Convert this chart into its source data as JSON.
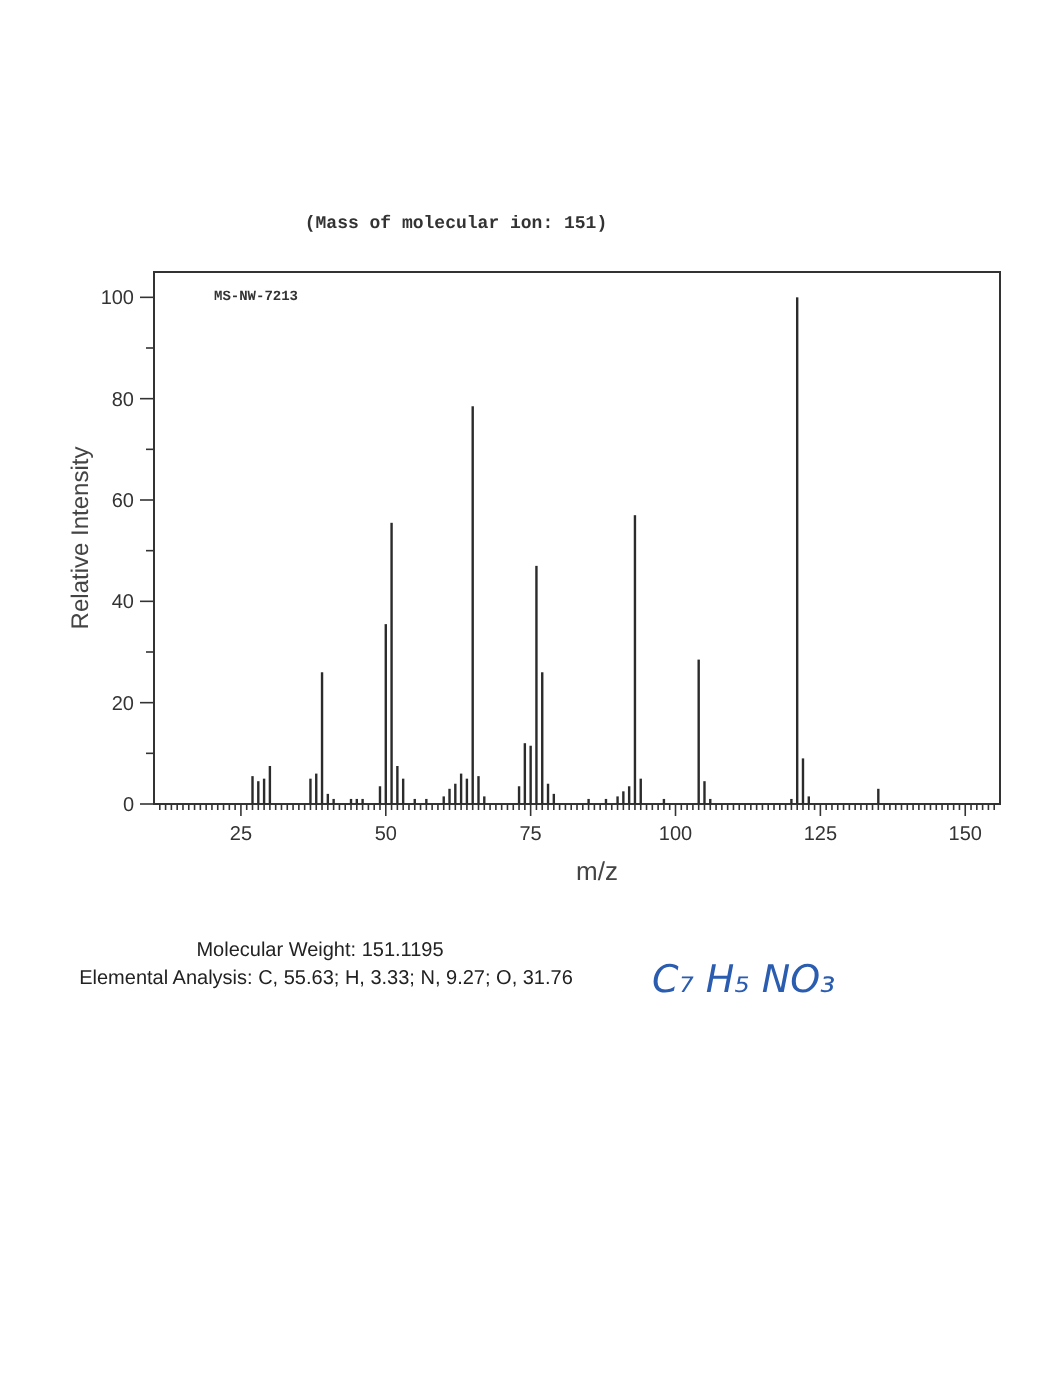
{
  "chart_data": {
    "type": "bar",
    "title": "(Mass of molecular ion: 151)",
    "xlabel": "m/z",
    "ylabel": "Relative Intensity",
    "annotations": [
      "MS-NW-7213",
      "Molecular Weight: 151.1195",
      "Elemental Analysis: C, 55.63; H, 3.33; N, 9.27; O, 31.76",
      "C₇ H₅ NO₃"
    ],
    "x": [
      27,
      28,
      29,
      30,
      37,
      38,
      39,
      40,
      41,
      44,
      45,
      46,
      49,
      50,
      51,
      52,
      53,
      55,
      57,
      60,
      61,
      62,
      63,
      64,
      65,
      66,
      67,
      73,
      74,
      75,
      76,
      77,
      78,
      79,
      85,
      88,
      90,
      91,
      92,
      93,
      94,
      98,
      104,
      105,
      106,
      120,
      121,
      122,
      123,
      135
    ],
    "values": [
      5.5,
      4.5,
      5,
      7.5,
      5,
      6,
      26,
      2,
      1,
      1,
      1,
      1,
      3.5,
      35.5,
      55.5,
      7.5,
      5,
      1,
      1,
      1.5,
      3,
      4,
      6,
      5,
      78.5,
      5.5,
      1.5,
      3.5,
      12,
      11.5,
      47,
      26,
      4,
      2,
      1,
      1,
      1.5,
      2.5,
      3.5,
      57,
      5,
      1,
      28.5,
      4.5,
      1,
      1,
      100,
      9,
      1.5,
      3
    ],
    "color": "#2b2b2b",
    "xlim": [
      10,
      156
    ],
    "ylim": [
      0,
      105
    ],
    "xticks": [
      {
        "value": 11,
        "label": null
      },
      {
        "value": 12,
        "label": null
      },
      {
        "value": 13,
        "label": null
      },
      {
        "value": 14,
        "label": null
      },
      {
        "value": 15,
        "label": null
      },
      {
        "value": 16,
        "label": null
      },
      {
        "value": 17,
        "label": null
      },
      {
        "value": 18,
        "label": null
      },
      {
        "value": 19,
        "label": null
      },
      {
        "value": 20,
        "label": null
      },
      {
        "value": 21,
        "label": null
      },
      {
        "value": 22,
        "label": null
      },
      {
        "value": 23,
        "label": null
      },
      {
        "value": 24,
        "label": null
      },
      25,
      {
        "value": 26,
        "label": null
      },
      {
        "value": 27,
        "label": null
      },
      {
        "value": 28,
        "label": null
      },
      {
        "value": 29,
        "label": null
      },
      {
        "value": 30,
        "label": null
      },
      {
        "value": 31,
        "label": null
      },
      {
        "value": 32,
        "label": null
      },
      {
        "value": 33,
        "label": null
      },
      {
        "value": 34,
        "label": null
      },
      {
        "value": 35,
        "label": null
      },
      {
        "value": 36,
        "label": null
      },
      {
        "value": 37,
        "label": null
      },
      {
        "value": 38,
        "label": null
      },
      {
        "value": 39,
        "label": null
      },
      {
        "value": 40,
        "label": null
      },
      {
        "value": 41,
        "label": null
      },
      {
        "value": 42,
        "label": null
      },
      {
        "value": 43,
        "label": null
      },
      {
        "value": 44,
        "label": null
      },
      {
        "value": 45,
        "label": null
      },
      {
        "value": 46,
        "label": null
      },
      {
        "value": 47,
        "label": null
      },
      {
        "value": 48,
        "label": null
      },
      {
        "value": 49,
        "label": null
      },
      50,
      {
        "value": 51,
        "label": null
      },
      {
        "value": 52,
        "label": null
      },
      {
        "value": 53,
        "label": null
      },
      {
        "value": 54,
        "label": null
      },
      {
        "value": 55,
        "label": null
      },
      {
        "value": 56,
        "label": null
      },
      {
        "value": 57,
        "label": null
      },
      {
        "value": 58,
        "label": null
      },
      {
        "value": 59,
        "label": null
      },
      {
        "value": 60,
        "label": null
      },
      {
        "value": 61,
        "label": null
      },
      {
        "value": 62,
        "label": null
      },
      {
        "value": 63,
        "label": null
      },
      {
        "value": 64,
        "label": null
      },
      {
        "value": 65,
        "label": null
      },
      {
        "value": 66,
        "label": null
      },
      {
        "value": 67,
        "label": null
      },
      {
        "value": 68,
        "label": null
      },
      {
        "value": 69,
        "label": null
      },
      {
        "value": 70,
        "label": null
      },
      {
        "value": 71,
        "label": null
      },
      {
        "value": 72,
        "label": null
      },
      {
        "value": 73,
        "label": null
      },
      {
        "value": 74,
        "label": null
      },
      75,
      {
        "value": 76,
        "label": null
      },
      {
        "value": 77,
        "label": null
      },
      {
        "value": 78,
        "label": null
      },
      {
        "value": 79,
        "label": null
      },
      {
        "value": 80,
        "label": null
      },
      {
        "value": 81,
        "label": null
      },
      {
        "value": 82,
        "label": null
      },
      {
        "value": 83,
        "label": null
      },
      {
        "value": 84,
        "label": null
      },
      {
        "value": 85,
        "label": null
      },
      {
        "value": 86,
        "label": null
      },
      {
        "value": 87,
        "label": null
      },
      {
        "value": 88,
        "label": null
      },
      {
        "value": 89,
        "label": null
      },
      {
        "value": 90,
        "label": null
      },
      {
        "value": 91,
        "label": null
      },
      {
        "value": 92,
        "label": null
      },
      {
        "value": 93,
        "label": null
      },
      {
        "value": 94,
        "label": null
      },
      {
        "value": 95,
        "label": null
      },
      {
        "value": 96,
        "label": null
      },
      {
        "value": 97,
        "label": null
      },
      {
        "value": 98,
        "label": null
      },
      {
        "value": 99,
        "label": null
      },
      100,
      {
        "value": 101,
        "label": null
      },
      {
        "value": 102,
        "label": null
      },
      {
        "value": 103,
        "label": null
      },
      {
        "value": 104,
        "label": null
      },
      {
        "value": 105,
        "label": null
      },
      {
        "value": 106,
        "label": null
      },
      {
        "value": 107,
        "label": null
      },
      {
        "value": 108,
        "label": null
      },
      {
        "value": 109,
        "label": null
      },
      {
        "value": 110,
        "label": null
      },
      {
        "value": 111,
        "label": null
      },
      {
        "value": 112,
        "label": null
      },
      {
        "value": 113,
        "label": null
      },
      {
        "value": 114,
        "label": null
      },
      {
        "value": 115,
        "label": null
      },
      {
        "value": 116,
        "label": null
      },
      {
        "value": 117,
        "label": null
      },
      {
        "value": 118,
        "label": null
      },
      {
        "value": 119,
        "label": null
      },
      {
        "value": 120,
        "label": null
      },
      {
        "value": 121,
        "label": null
      },
      {
        "value": 122,
        "label": null
      },
      {
        "value": 123,
        "label": null
      },
      {
        "value": 124,
        "label": null
      },
      125,
      {
        "value": 126,
        "label": null
      },
      {
        "value": 127,
        "label": null
      },
      {
        "value": 128,
        "label": null
      },
      {
        "value": 129,
        "label": null
      },
      {
        "value": 130,
        "label": null
      },
      {
        "value": 131,
        "label": null
      },
      {
        "value": 132,
        "label": null
      },
      {
        "value": 133,
        "label": null
      },
      {
        "value": 134,
        "label": null
      },
      {
        "value": 135,
        "label": null
      },
      {
        "value": 136,
        "label": null
      },
      {
        "value": 137,
        "label": null
      },
      {
        "value": 138,
        "label": null
      },
      {
        "value": 139,
        "label": null
      },
      {
        "value": 140,
        "label": null
      },
      {
        "value": 141,
        "label": null
      },
      {
        "value": 142,
        "label": null
      },
      {
        "value": 143,
        "label": null
      },
      {
        "value": 144,
        "label": null
      },
      {
        "value": 145,
        "label": null
      },
      {
        "value": 146,
        "label": null
      },
      {
        "value": 147,
        "label": null
      },
      {
        "value": 148,
        "label": null
      },
      {
        "value": 149,
        "label": null
      },
      150,
      {
        "value": 151,
        "label": null
      },
      {
        "value": 152,
        "label": null
      },
      {
        "value": 153,
        "label": null
      },
      {
        "value": 154,
        "label": null
      },
      {
        "value": 155,
        "label": null
      }
    ],
    "yticks": [
      0,
      {
        "value": 10,
        "label": null
      },
      20,
      {
        "value": 30,
        "label": null
      },
      40,
      {
        "value": 50,
        "label": null
      },
      60,
      {
        "value": 70,
        "label": null
      },
      80,
      {
        "value": 90,
        "label": null
      },
      100
    ]
  }
}
